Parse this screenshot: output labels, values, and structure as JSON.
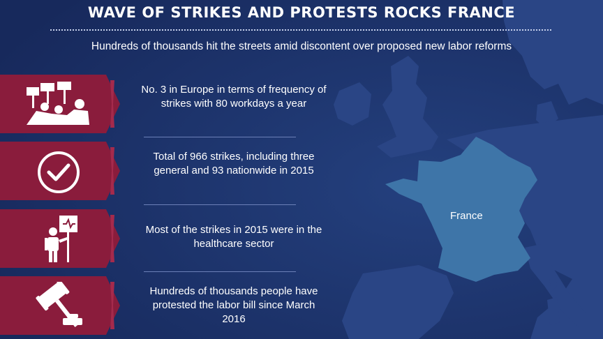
{
  "header": {
    "title": "WAVE OF STRIKES AND PROTESTS ROCKS FRANCE",
    "subtitle": "Hundreds of thousands hit the streets amid discontent over proposed new labor reforms"
  },
  "facts": [
    {
      "icon": "protest-crowd-icon",
      "text": "No. 3 in Europe in terms of frequency of strikes with 80 workdays a year"
    },
    {
      "icon": "checkmark-circle-icon",
      "text": "Total of 966 strikes, including three general and 93 nationwide in 2015"
    },
    {
      "icon": "healthcare-protester-icon",
      "text": "Most of the strikes in 2015 were in the healthcare sector"
    },
    {
      "icon": "gavel-icon",
      "text": "Hundreds of thousands people have protested the labor bill since March 2016"
    }
  ],
  "map": {
    "highlight_label": "France"
  },
  "colors": {
    "background": "#1e3370",
    "land": "#2a4585",
    "france": "#3e75a8",
    "tab": "#8a1c3c"
  }
}
